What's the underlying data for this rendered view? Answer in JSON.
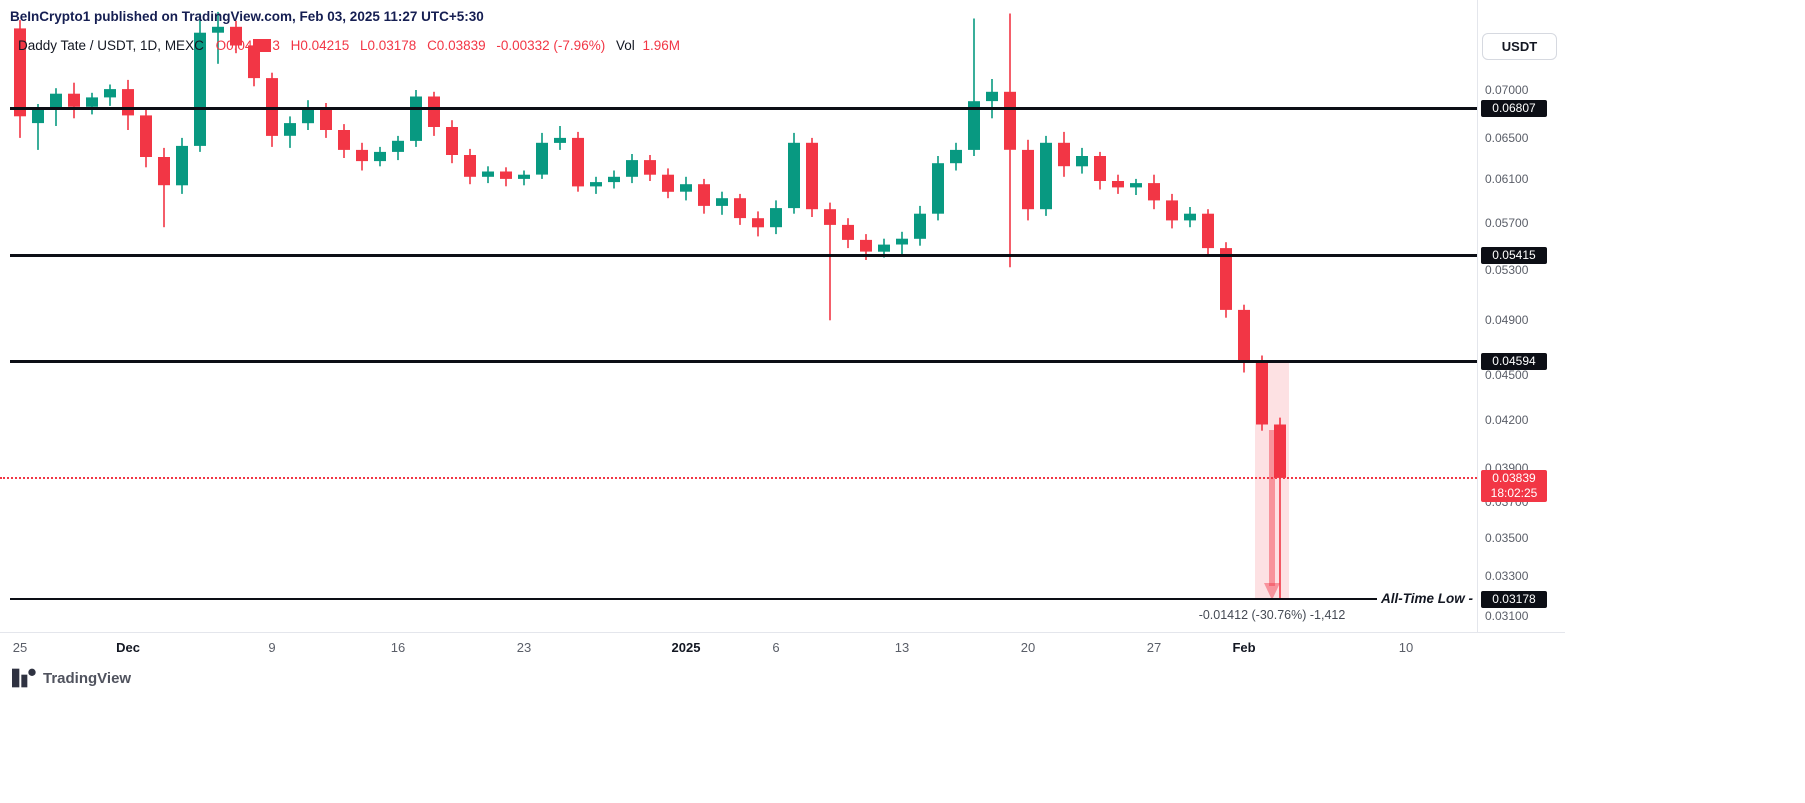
{
  "header": {
    "attribution": "BeInCrypto1 published on TradingView.com, Feb 03, 2025 11:27 UTC+5:30"
  },
  "legend": {
    "symbol": "Daddy Tate / USDT, 1D, MEXC",
    "open_prefix": "O0.04",
    "open_hidden": "17",
    "open_suffix": "3",
    "high": "H0.04215",
    "low": "L0.03178",
    "close": "C0.03839",
    "change": "-0.00332 (-7.96%)",
    "volume_label": "Vol",
    "volume_value": "1.96M"
  },
  "toolbar": {
    "currency_label": "USDT"
  },
  "annotations": {
    "all_time_low_label": "All-Time Low -",
    "measurement_text": "-0.01412 (-30.76%) -1,412"
  },
  "footer": {
    "logo_text": "TradingView"
  },
  "colors": {
    "up": "#089981",
    "down": "#F23645",
    "badge_bg": "#0c0e15",
    "accent_red": "#F23645"
  },
  "chart_data": {
    "type": "candlestick",
    "title": "Daddy Tate / USDT, 1D, MEXC",
    "interval": "1D",
    "exchange": "MEXC",
    "last_bar": {
      "high": 0.04215,
      "low": 0.03178,
      "close": 0.03839,
      "change": -0.00332,
      "change_pct": -7.96,
      "volume": "1.96M"
    },
    "y_axis": {
      "scale": "log",
      "range": [
        0.031,
        0.0795
      ],
      "position": "right"
    },
    "y_ticks": [
      "0.07000",
      "0.06500",
      "0.06100",
      "0.05700",
      "0.05300",
      "0.04900",
      "0.04500",
      "0.04200",
      "0.03900",
      "0.03700",
      "0.03500",
      "0.03300",
      "0.03100"
    ],
    "levels": [
      {
        "price": 0.06807,
        "label": "0.06807"
      },
      {
        "price": 0.05415,
        "label": "0.05415"
      },
      {
        "price": 0.04594,
        "label": "0.04594"
      },
      {
        "price": 0.03178,
        "label": "0.03178",
        "note": "all-time-low"
      }
    ],
    "current": {
      "price": 0.03839,
      "label": "0.03839",
      "countdown": "18:02:25"
    },
    "measurement": {
      "from_price": 0.0459,
      "to_price": 0.03178,
      "text": "-0.01412 (-30.76%) -1,412"
    },
    "x_ticks": [
      {
        "label": "25",
        "index": 0,
        "emphasis": false
      },
      {
        "label": "Dec",
        "index": 6,
        "emphasis": true
      },
      {
        "label": "9",
        "index": 14,
        "emphasis": false
      },
      {
        "label": "16",
        "index": 21,
        "emphasis": false
      },
      {
        "label": "23",
        "index": 28,
        "emphasis": false
      },
      {
        "label": "2025",
        "index": 37,
        "emphasis": true
      },
      {
        "label": "6",
        "index": 42,
        "emphasis": false
      },
      {
        "label": "13",
        "index": 49,
        "emphasis": false
      },
      {
        "label": "20",
        "index": 56,
        "emphasis": false
      },
      {
        "label": "27",
        "index": 63,
        "emphasis": false
      },
      {
        "label": "Feb",
        "index": 68,
        "emphasis": true
      },
      {
        "label": "10",
        "index": 77,
        "emphasis": false
      }
    ],
    "candles": [
      [
        "Nov 25",
        0.077,
        0.078,
        0.065,
        0.0672
      ],
      [
        "Nov 26",
        0.0665,
        0.0685,
        0.0638,
        0.068
      ],
      [
        "Nov 27",
        0.068,
        0.0702,
        0.0662,
        0.0696
      ],
      [
        "Nov 28",
        0.0696,
        0.0708,
        0.067,
        0.0682
      ],
      [
        "Nov 29",
        0.0682,
        0.0697,
        0.0674,
        0.0692
      ],
      [
        "Nov 30",
        0.0692,
        0.0706,
        0.0683,
        0.0701
      ],
      [
        "Dec 1",
        0.0701,
        0.0711,
        0.0658,
        0.0673
      ],
      [
        "Dec 2",
        0.0673,
        0.0679,
        0.0621,
        0.0631
      ],
      [
        "Dec 3",
        0.0631,
        0.064,
        0.0566,
        0.0604
      ],
      [
        "Dec 4",
        0.0604,
        0.065,
        0.0596,
        0.0642
      ],
      [
        "Dec 5",
        0.0642,
        0.0788,
        0.0636,
        0.0765
      ],
      [
        "Dec 6",
        0.0765,
        0.079,
        0.0729,
        0.0772
      ],
      [
        "Dec 7",
        0.0772,
        0.0779,
        0.0741,
        0.075
      ],
      [
        "Dec 8",
        0.075,
        0.0757,
        0.0704,
        0.0713
      ],
      [
        "Dec 9",
        0.0713,
        0.0719,
        0.0641,
        0.0652
      ],
      [
        "Dec 10",
        0.0652,
        0.0672,
        0.064,
        0.0665
      ],
      [
        "Dec 11",
        0.0665,
        0.0689,
        0.0658,
        0.0681
      ],
      [
        "Dec 12",
        0.0681,
        0.0686,
        0.065,
        0.0658
      ],
      [
        "Dec 13",
        0.0658,
        0.0664,
        0.063,
        0.0638
      ],
      [
        "Dec 14",
        0.0638,
        0.0645,
        0.0618,
        0.0627
      ],
      [
        "Dec 15",
        0.0627,
        0.0641,
        0.0622,
        0.0636
      ],
      [
        "Dec 16",
        0.0636,
        0.0652,
        0.0628,
        0.0647
      ],
      [
        "Dec 17",
        0.0647,
        0.07,
        0.0641,
        0.0693
      ],
      [
        "Dec 18",
        0.0693,
        0.0698,
        0.0652,
        0.0661
      ],
      [
        "Dec 19",
        0.0661,
        0.0668,
        0.0625,
        0.0633
      ],
      [
        "Dec 20",
        0.0633,
        0.0639,
        0.0605,
        0.0612
      ],
      [
        "Dec 21",
        0.0612,
        0.0622,
        0.0606,
        0.0617
      ],
      [
        "Dec 22",
        0.0617,
        0.0621,
        0.0603,
        0.061
      ],
      [
        "Dec 23",
        0.061,
        0.0618,
        0.0604,
        0.0614
      ],
      [
        "Dec 24",
        0.0614,
        0.0655,
        0.061,
        0.0645
      ],
      [
        "Dec 25",
        0.0645,
        0.0662,
        0.0638,
        0.065
      ],
      [
        "Dec 26",
        0.065,
        0.0656,
        0.0598,
        0.0603
      ],
      [
        "Dec 27",
        0.0603,
        0.0612,
        0.0596,
        0.0607
      ],
      [
        "Dec 28",
        0.0607,
        0.0618,
        0.0601,
        0.0612
      ],
      [
        "Dec 29",
        0.0612,
        0.0634,
        0.0606,
        0.0628
      ],
      [
        "Dec 30",
        0.0628,
        0.0633,
        0.0608,
        0.0614
      ],
      [
        "Dec 31",
        0.0614,
        0.062,
        0.0592,
        0.0598
      ],
      [
        "Jan 1",
        0.0598,
        0.0612,
        0.059,
        0.0605
      ],
      [
        "Jan 2",
        0.0605,
        0.061,
        0.0578,
        0.0585
      ],
      [
        "Jan 3",
        0.0585,
        0.0598,
        0.0577,
        0.0592
      ],
      [
        "Jan 4",
        0.0592,
        0.0596,
        0.0568,
        0.0574
      ],
      [
        "Jan 5",
        0.0574,
        0.058,
        0.0558,
        0.0566
      ],
      [
        "Jan 6",
        0.0566,
        0.059,
        0.056,
        0.0583
      ],
      [
        "Jan 7",
        0.0583,
        0.0655,
        0.0578,
        0.0645
      ],
      [
        "Jan 8",
        0.0645,
        0.065,
        0.0575,
        0.0582
      ],
      [
        "Jan 9",
        0.0582,
        0.0588,
        0.049,
        0.0568
      ],
      [
        "Jan 10",
        0.0568,
        0.0574,
        0.0548,
        0.0555
      ],
      [
        "Jan 11",
        0.0555,
        0.056,
        0.0538,
        0.0545
      ],
      [
        "Jan 12",
        0.0545,
        0.0556,
        0.054,
        0.0551
      ],
      [
        "Jan 13",
        0.0551,
        0.0562,
        0.0542,
        0.0556
      ],
      [
        "Jan 14",
        0.0556,
        0.0585,
        0.055,
        0.0578
      ],
      [
        "Jan 15",
        0.0578,
        0.0632,
        0.0572,
        0.0625
      ],
      [
        "Jan 16",
        0.0625,
        0.0645,
        0.0618,
        0.0638
      ],
      [
        "Jan 17",
        0.0638,
        0.0782,
        0.0632,
        0.0688
      ],
      [
        "Jan 18",
        0.0688,
        0.0712,
        0.067,
        0.0698
      ],
      [
        "Jan 19",
        0.0698,
        0.0788,
        0.0532,
        0.0638
      ],
      [
        "Jan 20",
        0.0638,
        0.0648,
        0.0572,
        0.0582
      ],
      [
        "Jan 21",
        0.0582,
        0.0652,
        0.0576,
        0.0645
      ],
      [
        "Jan 22",
        0.0645,
        0.0656,
        0.0612,
        0.0622
      ],
      [
        "Jan 23",
        0.0622,
        0.064,
        0.0615,
        0.0632
      ],
      [
        "Jan 24",
        0.0632,
        0.0636,
        0.06,
        0.0608
      ],
      [
        "Jan 25",
        0.0608,
        0.0614,
        0.0596,
        0.0602
      ],
      [
        "Jan 26",
        0.0602,
        0.061,
        0.0595,
        0.0606
      ],
      [
        "Jan 27",
        0.0606,
        0.0614,
        0.0582,
        0.059
      ],
      [
        "Jan 28",
        0.059,
        0.0596,
        0.0565,
        0.0572
      ],
      [
        "Jan 29",
        0.0572,
        0.0584,
        0.0566,
        0.0578
      ],
      [
        "Jan 30",
        0.0578,
        0.0582,
        0.0542,
        0.0548
      ],
      [
        "Jan 31",
        0.0548,
        0.0553,
        0.0492,
        0.0498
      ],
      [
        "Feb 1",
        0.0498,
        0.0502,
        0.0452,
        0.0459
      ],
      [
        "Feb 2",
        0.0459,
        0.0464,
        0.0413,
        0.0417
      ],
      [
        "Feb 3",
        0.0417,
        0.04215,
        0.03178,
        0.03839
      ]
    ]
  }
}
